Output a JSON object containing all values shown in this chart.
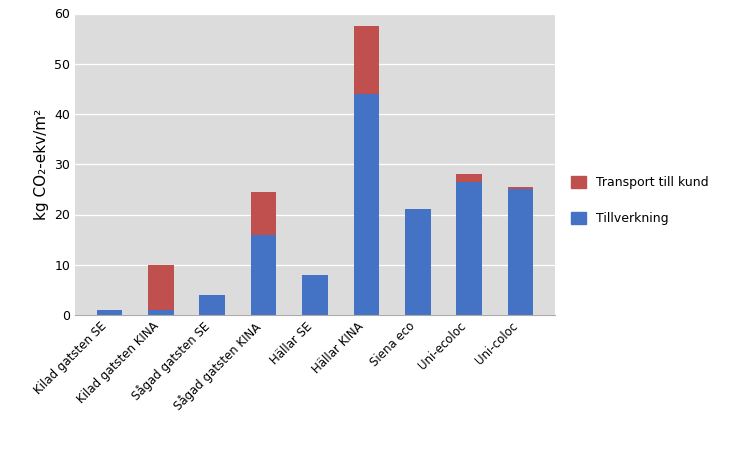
{
  "categories": [
    "Kilad gatsten SE",
    "Kilad gatsten KINA",
    "Sågad gatsten SE",
    "Sågad gatsten KINA",
    "Hällar SE",
    "Hällar KINA",
    "Siena eco",
    "Uni-ecoloc",
    "Uni-coloc"
  ],
  "tillverkning": [
    1.0,
    1.0,
    4.0,
    16.0,
    8.0,
    44.0,
    21.0,
    26.5,
    25.0
  ],
  "transport": [
    0.0,
    9.0,
    0.0,
    8.5,
    0.0,
    13.5,
    0.0,
    1.5,
    0.5
  ],
  "color_tillverkning": "#4472C4",
  "color_transport": "#C0504D",
  "ylabel": "kg CO₂-ekv/m²",
  "ylim": [
    0,
    60
  ],
  "yticks": [
    0,
    10,
    20,
    30,
    40,
    50,
    60
  ],
  "legend_transport": "Transport till kund",
  "legend_tillverkning": "Tillverkning",
  "fig_bg": "#FFFFFF",
  "plot_bg": "#DCDCDC",
  "bar_width": 0.5
}
